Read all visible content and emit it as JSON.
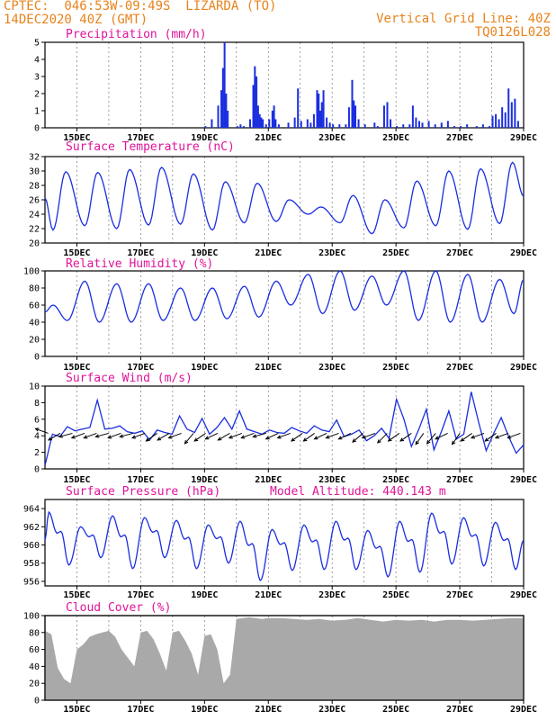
{
  "header": {
    "line1": "CPTEC:  046:53W-09:49S  LIZARDA (TO)",
    "line2": "14DEC2020 40Z (GMT)",
    "right1": "Vertical Grid Line: 40Z",
    "right2": "TQ0126L028"
  },
  "colors": {
    "header": "#e8831c",
    "titles": "#e0139a",
    "line": "#1a2ee0",
    "bars": "#1a2ee0",
    "cloud": "#a9a9a9",
    "vectors": "#000000"
  },
  "chart_data": [
    {
      "type": "bar",
      "title": "Precipitation (mm/h)",
      "ylim": [
        0,
        5
      ],
      "yticks": [
        0,
        1,
        2,
        3,
        4,
        5
      ],
      "xlim_days": [
        14,
        29
      ],
      "xticks": [
        "15DEC",
        "17DEC",
        "19DEC",
        "21DEC",
        "23DEC",
        "25DEC",
        "27DEC",
        "29DEC"
      ],
      "x_day": [
        19.0,
        19.2,
        19.4,
        19.5,
        19.55,
        19.6,
        19.65,
        19.7,
        20.0,
        20.1,
        20.2,
        20.4,
        20.5,
        20.55,
        20.6,
        20.65,
        20.7,
        20.75,
        20.8,
        20.9,
        21.0,
        21.1,
        21.15,
        21.2,
        21.3,
        21.6,
        21.8,
        21.9,
        22.0,
        22.2,
        22.3,
        22.4,
        22.5,
        22.55,
        22.6,
        22.65,
        22.7,
        22.8,
        22.9,
        23.0,
        23.2,
        23.4,
        23.5,
        23.6,
        23.65,
        23.7,
        23.8,
        24.0,
        24.3,
        24.4,
        24.6,
        24.7,
        24.8,
        25.0,
        25.2,
        25.4,
        25.5,
        25.6,
        25.7,
        25.8,
        26.0,
        26.2,
        26.4,
        26.6,
        26.8,
        27.0,
        27.2,
        27.5,
        27.7,
        27.9,
        28.0,
        28.1,
        28.2,
        28.3,
        28.4,
        28.5,
        28.6,
        28.7,
        28.8
      ],
      "values": [
        0.1,
        0.5,
        1.3,
        2.2,
        3.5,
        5.0,
        2.0,
        1.0,
        0.1,
        0.2,
        0.1,
        0.5,
        2.5,
        3.6,
        3.0,
        1.3,
        0.8,
        0.6,
        0.5,
        0.2,
        0.5,
        1.0,
        1.3,
        0.5,
        0.2,
        0.3,
        0.6,
        2.3,
        0.4,
        0.5,
        0.3,
        0.8,
        2.2,
        2.0,
        1.0,
        1.5,
        2.2,
        0.6,
        0.3,
        0.2,
        0.2,
        0.2,
        1.2,
        2.8,
        1.6,
        1.3,
        0.5,
        0.2,
        0.3,
        0.1,
        1.3,
        1.5,
        0.5,
        0.1,
        0.2,
        0.2,
        1.3,
        0.6,
        0.4,
        0.3,
        0.4,
        0.2,
        0.3,
        0.4,
        0.1,
        0.1,
        0.2,
        0.1,
        0.2,
        0.1,
        0.7,
        0.8,
        0.5,
        1.2,
        0.9,
        2.3,
        1.5,
        1.7,
        0.4
      ]
    },
    {
      "type": "line",
      "title": "Surface Temperature (nC)",
      "ylim": [
        20,
        32
      ],
      "yticks": [
        20,
        22,
        24,
        26,
        28,
        30,
        32
      ],
      "maxima": [
        29.9,
        29.8,
        30.2,
        30.5,
        29.6,
        28.5,
        28.3,
        26.0,
        25.0,
        26.6,
        26.0,
        28.6,
        30.0,
        30.3,
        31.2
      ],
      "minima": [
        21.8,
        22.4,
        22.0,
        22.5,
        22.6,
        21.8,
        22.8,
        23.0,
        24.0,
        22.8,
        21.3,
        22.1,
        22.4,
        21.9,
        22.7
      ],
      "end_value": 26.5
    },
    {
      "type": "line",
      "title": "Relative Humidity (%)",
      "ylim": [
        0,
        100
      ],
      "yticks": [
        0,
        20,
        40,
        60,
        80,
        100
      ],
      "maxima": [
        60,
        88,
        85,
        85,
        80,
        80,
        82,
        88,
        96,
        100,
        94,
        100,
        100,
        96,
        90
      ],
      "minima": [
        42,
        40,
        40,
        42,
        42,
        44,
        46,
        60,
        50,
        54,
        60,
        42,
        40,
        40,
        50
      ],
      "end_value": 90
    },
    {
      "type": "line",
      "title": "Surface Wind (m/s)",
      "ylim": [
        0,
        10
      ],
      "yticks": [
        0,
        2,
        4,
        6,
        8,
        10
      ],
      "speed": [
        0.4,
        4.2,
        3.9,
        5.1,
        4.6,
        4.8,
        5.0,
        8.3,
        4.8,
        4.9,
        5.2,
        4.5,
        4.3,
        4.6,
        3.5,
        4.7,
        4.4,
        4.2,
        6.4,
        4.8,
        4.4,
        6.1,
        4.2,
        5.0,
        6.2,
        4.8,
        7.0,
        4.8,
        4.5,
        4.2,
        4.7,
        4.4,
        4.3,
        5.0,
        4.6,
        4.3,
        5.2,
        4.7,
        4.5,
        5.9,
        3.9,
        4.2,
        4.7,
        3.4,
        4.0,
        4.9,
        3.7,
        8.4,
        6.0,
        2.7,
        4.8,
        7.2,
        2.3,
        4.5,
        7.0,
        3.6,
        4.2,
        9.3,
        5.6,
        2.2,
        4.3,
        6.2,
        3.9,
        1.9,
        2.9
      ],
      "vector_angles_deg": [
        160,
        210,
        195,
        200,
        200,
        195,
        200,
        195,
        200,
        215,
        210,
        200,
        230,
        215,
        205,
        210,
        200,
        200,
        195,
        205,
        200,
        215,
        215,
        205,
        200,
        205,
        220,
        200,
        225,
        215,
        215,
        235,
        230,
        205,
        235,
        215,
        200,
        215,
        200,
        200
      ],
      "end_value": 2.9
    },
    {
      "type": "line",
      "title": "Surface Pressure (hPa)",
      "annotation": "Model Altitude: 440.143 m",
      "ylim": [
        955.5,
        965
      ],
      "yticks": [
        956,
        958,
        960,
        962,
        964
      ],
      "maxima": [
        963.6,
        962.0,
        963.2,
        963.0,
        962.7,
        962.2,
        962.6,
        961.7,
        962.2,
        962.6,
        961.6,
        962.6,
        963.5,
        963.0,
        962.5
      ],
      "minima": [
        957.8,
        958.6,
        957.4,
        958.6,
        957.4,
        958.0,
        956.1,
        957.2,
        957.3,
        957.3,
        956.5,
        957.0,
        957.9,
        957.7,
        957.3
      ],
      "end_value": 960.5
    },
    {
      "type": "area",
      "title": "Cloud Cover (%)",
      "ylim": [
        0,
        100
      ],
      "yticks": [
        0,
        20,
        40,
        60,
        80,
        100
      ],
      "x_day": [
        14.0,
        14.2,
        14.4,
        14.6,
        14.8,
        15.0,
        15.2,
        15.4,
        15.6,
        15.8,
        16.0,
        16.2,
        16.4,
        16.6,
        16.8,
        17.0,
        17.2,
        17.4,
        17.6,
        17.8,
        18.0,
        18.2,
        18.4,
        18.6,
        18.8,
        19.0,
        19.2,
        19.4,
        19.6,
        19.8,
        20.0,
        20.2,
        20.4,
        20.6,
        20.8,
        21.0,
        21.4,
        21.8,
        22.2,
        22.6,
        23.0,
        23.4,
        23.8,
        24.2,
        24.6,
        25.0,
        25.4,
        25.8,
        26.2,
        26.6,
        27.0,
        27.4,
        27.8,
        28.2,
        28.6,
        29.0
      ],
      "values": [
        82,
        78,
        38,
        25,
        20,
        60,
        66,
        75,
        78,
        80,
        82,
        75,
        60,
        50,
        40,
        80,
        82,
        72,
        55,
        35,
        80,
        82,
        70,
        55,
        30,
        76,
        78,
        60,
        20,
        30,
        96,
        97,
        98,
        97,
        96,
        97,
        97,
        96,
        95,
        96,
        94,
        95,
        97,
        95,
        93,
        95,
        94,
        95,
        93,
        95,
        95,
        94,
        95,
        96,
        97,
        97
      ]
    }
  ]
}
